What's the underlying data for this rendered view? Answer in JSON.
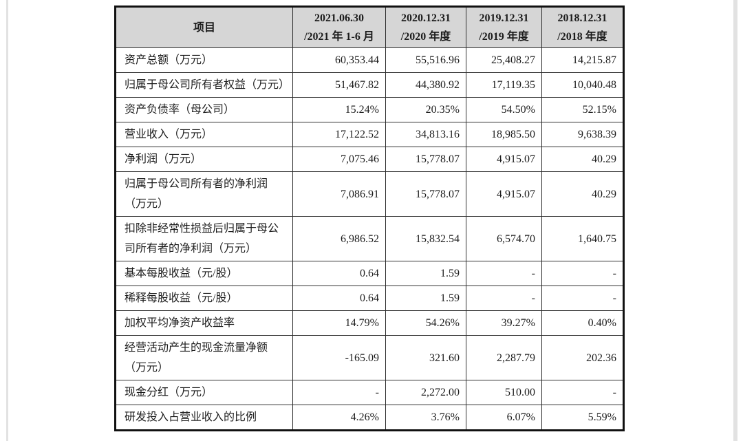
{
  "page": {
    "background": "#ffffff",
    "table_header_bg": "#d6d6d6",
    "border_color": "#111111",
    "text_color": "#1c1c1c"
  },
  "table": {
    "header": {
      "item_label": "项目",
      "periods": [
        {
          "line1": "2021.06.30",
          "line2": "/2021 年 1-6 月"
        },
        {
          "line1": "2020.12.31",
          "line2": "/2020 年度"
        },
        {
          "line1": "2019.12.31",
          "line2": "/2019 年度"
        },
        {
          "line1": "2018.12.31",
          "line2": "/2018 年度"
        }
      ]
    },
    "rows": [
      {
        "label": "资产总额（万元）",
        "values": [
          "60,353.44",
          "55,516.96",
          "25,408.27",
          "14,215.87"
        ]
      },
      {
        "label": "归属于母公司所有者权益（万元）",
        "values": [
          "51,467.82",
          "44,380.92",
          "17,119.35",
          "10,040.48"
        ]
      },
      {
        "label": "资产负债率（母公司）",
        "values": [
          "15.24%",
          "20.35%",
          "54.50%",
          "52.15%"
        ]
      },
      {
        "label": "营业收入（万元）",
        "values": [
          "17,122.52",
          "34,813.16",
          "18,985.50",
          "9,638.39"
        ]
      },
      {
        "label": "净利润（万元）",
        "values": [
          "7,075.46",
          "15,778.07",
          "4,915.07",
          "40.29"
        ]
      },
      {
        "label": "归属于母公司所有者的净利润（万元）",
        "values": [
          "7,086.91",
          "15,778.07",
          "4,915.07",
          "40.29"
        ]
      },
      {
        "label": "扣除非经常性损益后归属于母公司所有者的净利润（万元）",
        "values": [
          "6,986.52",
          "15,832.54",
          "6,574.70",
          "1,640.75"
        ]
      },
      {
        "label": "基本每股收益（元/股）",
        "values": [
          "0.64",
          "1.59",
          "-",
          "-"
        ]
      },
      {
        "label": "稀释每股收益（元/股）",
        "values": [
          "0.64",
          "1.59",
          "-",
          "-"
        ]
      },
      {
        "label": "加权平均净资产收益率",
        "values": [
          "14.79%",
          "54.26%",
          "39.27%",
          "0.40%"
        ]
      },
      {
        "label": "经营活动产生的现金流量净额（万元）",
        "values": [
          "-165.09",
          "321.60",
          "2,287.79",
          "202.36"
        ]
      },
      {
        "label": "现金分红（万元）",
        "values": [
          "-",
          "2,272.00",
          "510.00",
          "-"
        ]
      },
      {
        "label": "研发投入占营业收入的比例",
        "values": [
          "4.26%",
          "3.76%",
          "6.07%",
          "5.59%"
        ]
      }
    ]
  }
}
